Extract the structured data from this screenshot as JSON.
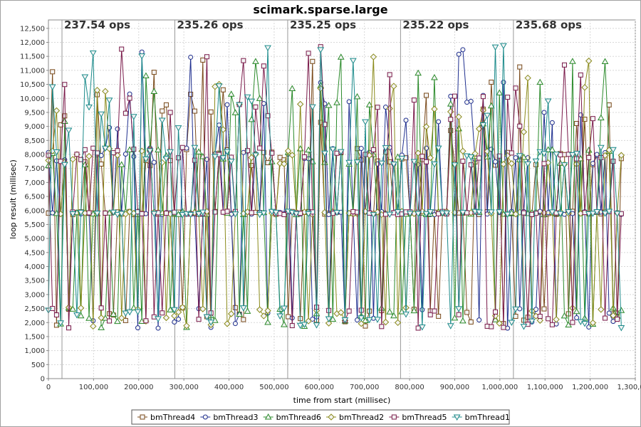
{
  "chart_data": {
    "type": "line",
    "title": "scimark.sparse.large",
    "xlabel": "time from start (millisec)",
    "ylabel": "loop result (millisec)",
    "xlim": [
      0,
      1300000
    ],
    "ylim": [
      0,
      12800
    ],
    "x_ticks": [
      "0",
      "100,000",
      "200,000",
      "300,000",
      "400,000",
      "500,000",
      "600,000",
      "700,000",
      "800,000",
      "900,000",
      "1,000,000",
      "1,100,000",
      "1,200,000",
      "1,300,000"
    ],
    "y_ticks": [
      "0",
      "500",
      "1,000",
      "1,500",
      "2,000",
      "2,500",
      "3,000",
      "3,500",
      "4,000",
      "4,500",
      "5,000",
      "5,500",
      "6,000",
      "6,500",
      "7,000",
      "7,500",
      "8,000",
      "8,500",
      "9,000",
      "9,500",
      "10,000",
      "10,500",
      "11,000",
      "11,500",
      "12,000",
      "12,500"
    ],
    "grid": true,
    "legend_position": "bottom",
    "markers": [
      {
        "x": 30000,
        "label": "237.54 ops"
      },
      {
        "x": 280000,
        "label": "235.26 ops"
      },
      {
        "x": 530000,
        "label": "235.25 ops"
      },
      {
        "x": 780000,
        "label": "235.22 ops"
      },
      {
        "x": 1030000,
        "label": "235.68 ops"
      }
    ],
    "series": [
      {
        "name": "bmThread4",
        "color": "#7a4a1a",
        "marker": "square"
      },
      {
        "name": "bmThread3",
        "color": "#1f2f8f",
        "marker": "circle"
      },
      {
        "name": "bmThread6",
        "color": "#2a8a2a",
        "marker": "triangle-up"
      },
      {
        "name": "bmThread2",
        "color": "#8a8a1a",
        "marker": "diamond"
      },
      {
        "name": "bmThread5",
        "color": "#7a1a4a",
        "marker": "square"
      },
      {
        "name": "bmThread1",
        "color": "#1a8a8a",
        "marker": "triangle-down"
      }
    ]
  }
}
